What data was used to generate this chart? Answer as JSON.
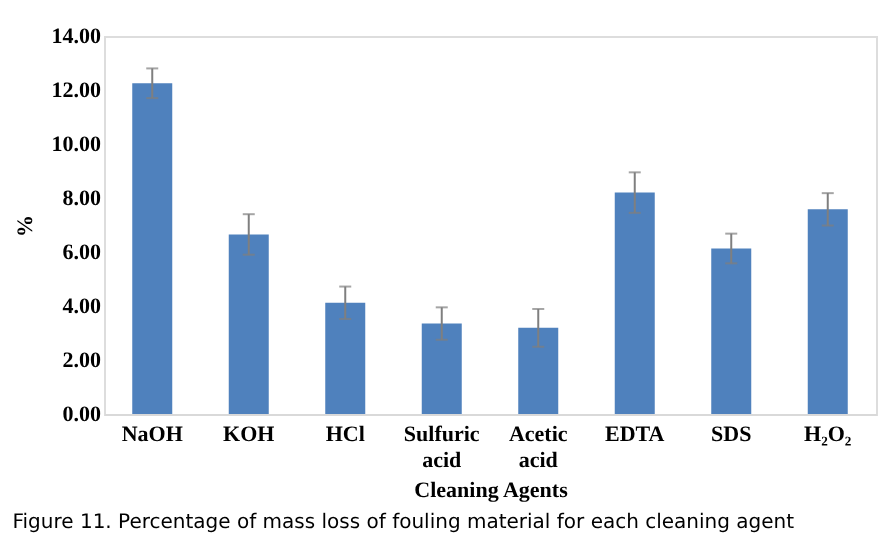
{
  "chart_data": {
    "type": "bar",
    "xlabel": "Cleaning Agents",
    "ylabel": "%",
    "categories": [
      "NaOH",
      "KOH",
      "HCl",
      "Sulfuric acid",
      "Acetic acid",
      "EDTA",
      "SDS",
      "H₂O₂"
    ],
    "values": [
      12.25,
      6.65,
      4.12,
      3.35,
      3.19,
      8.2,
      6.13,
      7.58
    ],
    "errors": [
      0.55,
      0.75,
      0.6,
      0.6,
      0.7,
      0.75,
      0.55,
      0.6
    ],
    "color": "#4f81bd",
    "ylim": [
      0,
      14
    ],
    "yticks": [
      {
        "value": 0,
        "label": "0.00"
      },
      {
        "value": 2,
        "label": "2.00"
      },
      {
        "value": 4,
        "label": "4.00"
      },
      {
        "value": 6,
        "label": "6.00"
      },
      {
        "value": 8,
        "label": "8.00"
      },
      {
        "value": 10,
        "label": "10.00"
      },
      {
        "value": 12,
        "label": "12.00"
      },
      {
        "value": 14,
        "label": "14.00"
      }
    ],
    "grid": false,
    "annotations": [
      "Figure 11. Percentage of mass loss of fouling material for each cleaning agent"
    ]
  }
}
